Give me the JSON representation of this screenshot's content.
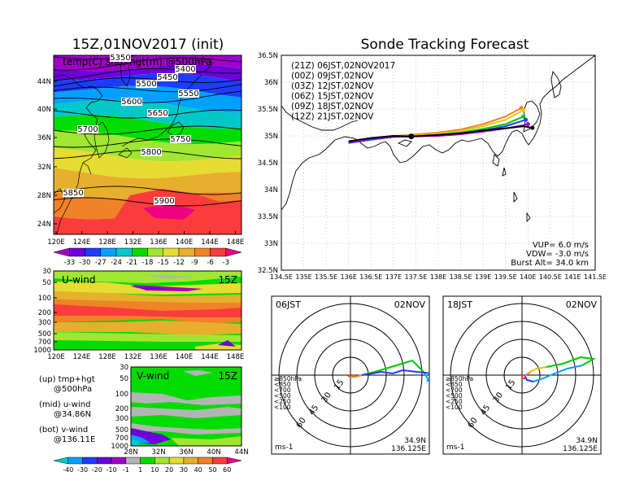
{
  "left_title": "15Z,01NOV2017 (init)",
  "right_title": "Sonde Tracking Forecast",
  "map_panel": {
    "label": "temp(C) shd, hgt(m) @500hPa",
    "lat_ticks": [
      "44N",
      "40N",
      "36N",
      "32N",
      "28N",
      "24N"
    ],
    "lon_ticks": [
      "120E",
      "124E",
      "128E",
      "132E",
      "136E",
      "140E",
      "144E",
      "148E"
    ],
    "contours": [
      "5350",
      "5400",
      "5450",
      "5500",
      "5550",
      "5600",
      "5650",
      "5700",
      "5750",
      "5800",
      "5850",
      "5900"
    ],
    "colorbar_labels": [
      "-33",
      "-30",
      "-27",
      "-24",
      "-21",
      "-18",
      "-15",
      "-12",
      "-9",
      "-6",
      "-3"
    ],
    "colors": [
      "#a000c8",
      "#6e00dc",
      "#1e3cff",
      "#00a0ff",
      "#00c8c8",
      "#00dc00",
      "#a0e632",
      "#e6dc32",
      "#e6af2d",
      "#f08228",
      "#fa3c3c",
      "#f00082"
    ]
  },
  "uwind_panel": {
    "label": "U-wind",
    "time": "15Z",
    "p_ticks": [
      "30",
      "50",
      "100",
      "200",
      "300",
      "500",
      "700",
      "1000"
    ],
    "lon_ticks": [
      "120E",
      "124E",
      "128E",
      "132E",
      "136E",
      "140E",
      "144E",
      "148E"
    ]
  },
  "vwind_panel": {
    "label": "V-wind",
    "time": "15Z",
    "p_ticks": [
      "30",
      "50",
      "100",
      "200",
      "300",
      "500",
      "700",
      "1000"
    ],
    "lat_ticks": [
      "28N",
      "32N",
      "36N",
      "40N",
      "44N"
    ]
  },
  "legend_notes": [
    {
      "a": "(up) tmp+hgt",
      "b": "@500hPa"
    },
    {
      "a": "(mid) u-wind",
      "b": "@34.86N"
    },
    {
      "a": "(bot) v-wind",
      "b": "@136.11E"
    }
  ],
  "wind_colorbar_labels": [
    "-40",
    "-30",
    "-20",
    "-10",
    "-1",
    "1",
    "10",
    "20",
    "30",
    "40",
    "50",
    "60"
  ],
  "wind_colors": [
    "#00c8c8",
    "#00a0ff",
    "#1e3cff",
    "#6e00dc",
    "#a000c8",
    "#b4b4b4",
    "#00dc00",
    "#a0e632",
    "#e6dc32",
    "#e6af2d",
    "#f08228",
    "#fa3c3c",
    "#f00082"
  ],
  "track_panel": {
    "lat_ticks": [
      "36.5N",
      "36N",
      "35.5N",
      "35N",
      "34.5N",
      "34N",
      "33.5N",
      "33N",
      "32.5N"
    ],
    "lon_ticks": [
      "134.5E",
      "135E",
      "135.5E",
      "136E",
      "136.5E",
      "137E",
      "137.5E",
      "138E",
      "138.5E",
      "139E",
      "139.5E",
      "140E",
      "140.5E",
      "141E",
      "141.5E"
    ],
    "legend": [
      {
        "label": "(21Z)  06JST,02NOV2017",
        "color": "#000000"
      },
      {
        "label": "(00Z)  09JST,02NOV",
        "color": "#a000c8"
      },
      {
        "label": "(03Z)  12JST,02NOV",
        "color": "#1e3cff"
      },
      {
        "label": "(06Z)  15JST,02NOV",
        "color": "#00c800"
      },
      {
        "label": "(09Z)  18JST,02NOV",
        "color": "#e6c800"
      },
      {
        "label": "(12Z)  21JST,02NOV",
        "color": "#f08228"
      }
    ],
    "params": [
      "VUP=  6.0  m/s",
      "VDW= -3.0  m/s",
      "Burst Alt=  34.0  km"
    ]
  },
  "chart_data": {
    "type": "line",
    "title": "Sonde Tracking Forecast",
    "xlim": [
      134.5,
      141.5
    ],
    "ylim": [
      32.5,
      36.5
    ],
    "launch_point": {
      "lon": 137.4,
      "lat": 34.99
    },
    "series": [
      {
        "name": "06JST,02NOV2017",
        "lon": [
          136.0,
          136.5,
          137.0,
          137.4,
          138.0,
          138.5,
          139.0,
          139.5,
          139.9,
          140.1
        ],
        "lat": [
          34.9,
          34.96,
          35.0,
          34.99,
          35.02,
          35.05,
          35.1,
          35.14,
          35.18,
          35.15
        ]
      },
      {
        "name": "09JST,02NOV",
        "lon": [
          136.0,
          136.5,
          137.0,
          137.4,
          138.0,
          138.5,
          139.0,
          139.5,
          139.9,
          140.0
        ],
        "lat": [
          34.88,
          34.94,
          34.99,
          34.99,
          35.0,
          35.03,
          35.08,
          35.14,
          35.2,
          35.22
        ]
      },
      {
        "name": "12JST,02NOV",
        "lon": [
          136.0,
          136.5,
          137.0,
          137.4,
          138.0,
          138.5,
          139.0,
          139.5,
          139.95
        ],
        "lat": [
          34.87,
          34.93,
          34.98,
          34.99,
          35.01,
          35.04,
          35.1,
          35.18,
          35.3
        ]
      },
      {
        "name": "15JST,02NOV",
        "lon": [
          136.0,
          136.5,
          137.0,
          137.4,
          138.0,
          138.5,
          139.0,
          139.5,
          139.9
        ],
        "lat": [
          34.87,
          34.93,
          34.98,
          34.99,
          35.02,
          35.06,
          35.13,
          35.22,
          35.36
        ]
      },
      {
        "name": "18JST,02NOV",
        "lon": [
          136.0,
          136.5,
          137.0,
          137.4,
          138.0,
          138.5,
          139.0,
          139.5,
          139.9
        ],
        "lat": [
          34.88,
          34.94,
          34.99,
          35.0,
          35.04,
          35.09,
          35.18,
          35.3,
          35.48
        ]
      },
      {
        "name": "21JST,02NOV",
        "lon": [
          136.0,
          136.5,
          137.0,
          137.4,
          138.0,
          138.5,
          139.0,
          139.5,
          139.85
        ],
        "lat": [
          34.89,
          34.95,
          35.0,
          35.02,
          35.06,
          35.12,
          35.22,
          35.36,
          35.52
        ]
      }
    ]
  },
  "hodo_left": {
    "time": "06JST",
    "date": "02NOV",
    "rings": [
      "15",
      "30",
      "45",
      "60"
    ],
    "levels": [
      {
        "label": "≥850hPa",
        "color": "#fa3c3c"
      },
      {
        "label": "<850",
        "color": "#f08228"
      },
      {
        "label": "<700",
        "color": "#e6c800"
      },
      {
        "label": "<500",
        "color": "#00c800"
      },
      {
        "label": "<250",
        "color": "#00a0ff"
      },
      {
        "label": "<100",
        "color": "#1e3cff"
      }
    ],
    "unit": "ms-1",
    "lat": "34.9N",
    "lon": "136.125E"
  },
  "hodo_right": {
    "time": "18JST",
    "date": "02NOV",
    "rings": [
      "15",
      "30",
      "45",
      "60"
    ],
    "levels": [
      {
        "label": "≥850hPa",
        "color": "#fa3c3c"
      },
      {
        "label": "<850",
        "color": "#f08228"
      },
      {
        "label": "<700",
        "color": "#e6c800"
      },
      {
        "label": "<500",
        "color": "#00c800"
      },
      {
        "label": "<250",
        "color": "#00a0ff"
      },
      {
        "label": "<100",
        "color": "#1e3cff"
      }
    ],
    "unit": "ms-1",
    "lat": "34.9N",
    "lon": "136.125E"
  }
}
